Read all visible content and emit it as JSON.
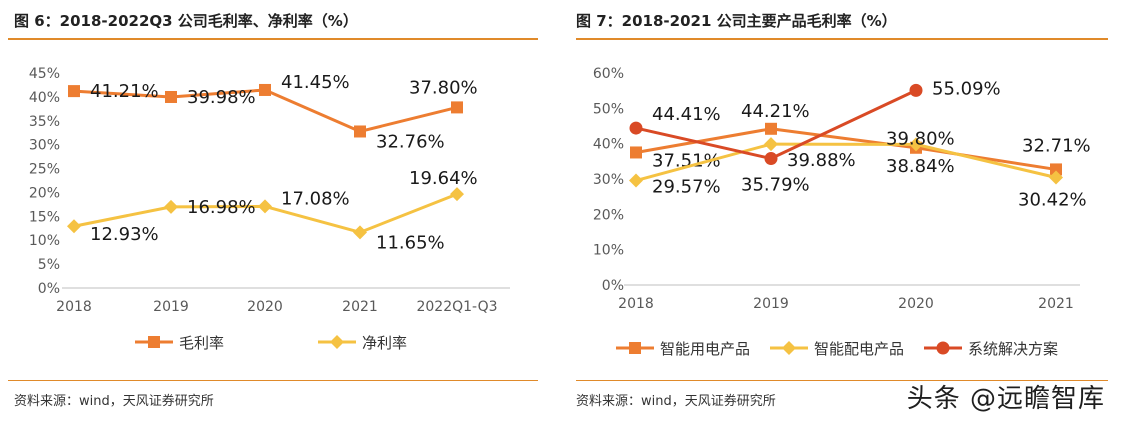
{
  "figures": [
    {
      "title": "图 6：2018-2022Q3 公司毛利率、净利率（%）",
      "source": "资料来源：wind，天风证券研究所"
    },
    {
      "title": "图 7：2018-2021 公司主要产品毛利率（%）",
      "source": "资料来源：wind，天风证券研究所"
    }
  ],
  "watermark": "头条 @远瞻智库",
  "chart_data": [
    {
      "type": "line",
      "title": "",
      "categories": [
        "2018",
        "2019",
        "2020",
        "2021",
        "2022Q1-Q3"
      ],
      "yticks": [
        "0%",
        "5%",
        "10%",
        "15%",
        "20%",
        "25%",
        "30%",
        "35%",
        "40%",
        "45%"
      ],
      "ylim": [
        0,
        45
      ],
      "grid": false,
      "legend": "bottom",
      "series": [
        {
          "name": "毛利率",
          "color": "#ed7d31",
          "marker": "square",
          "values": [
            41.21,
            39.98,
            41.45,
            32.76,
            37.8
          ],
          "labels": [
            "41.21%",
            "39.98%",
            "41.45%",
            "32.76%",
            "37.80%"
          ]
        },
        {
          "name": "净利率",
          "color": "#f5c242",
          "marker": "diamond",
          "values": [
            12.93,
            16.98,
            17.08,
            11.65,
            19.64
          ],
          "labels": [
            "12.93%",
            "16.98%",
            "17.08%",
            "11.65%",
            "19.64%"
          ]
        }
      ]
    },
    {
      "type": "line",
      "title": "",
      "categories": [
        "2018",
        "2019",
        "2020",
        "2021"
      ],
      "yticks": [
        "0%",
        "10%",
        "20%",
        "30%",
        "40%",
        "50%",
        "60%"
      ],
      "ylim": [
        0,
        60
      ],
      "grid": false,
      "legend": "bottom",
      "series": [
        {
          "name": "智能用电产品",
          "color": "#ed7d31",
          "marker": "square",
          "values": [
            37.51,
            44.21,
            38.84,
            32.71
          ],
          "labels": [
            "37.51%",
            "44.21%",
            "38.84%",
            "32.71%"
          ]
        },
        {
          "name": "智能配电产品",
          "color": "#f5c242",
          "marker": "diamond",
          "values": [
            29.57,
            39.88,
            39.8,
            30.42
          ],
          "labels": [
            "29.57%",
            "39.88%",
            "39.80%",
            "30.42%"
          ]
        },
        {
          "name": "系统解决方案",
          "color": "#d94a25",
          "marker": "circle",
          "values": [
            44.41,
            35.79,
            55.09,
            null
          ],
          "labels": [
            "44.41%",
            "35.79%",
            "55.09%",
            ""
          ]
        }
      ]
    }
  ]
}
